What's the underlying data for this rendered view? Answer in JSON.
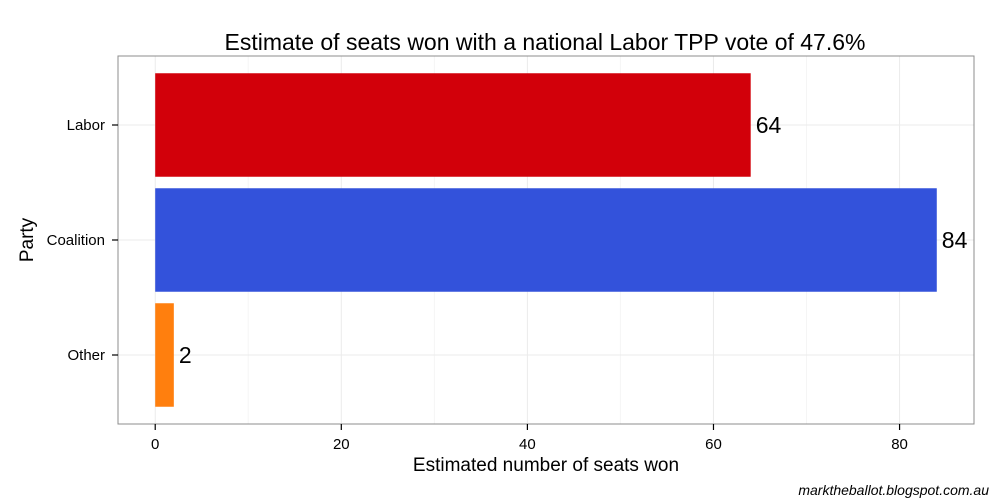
{
  "chart_data": {
    "type": "bar",
    "orientation": "horizontal",
    "title": "Estimate of seats won with a national Labor TPP vote of 47.6%",
    "xlabel": "Estimated number of seats won",
    "ylabel": "Party",
    "categories": [
      "Labor",
      "Coalition",
      "Other"
    ],
    "values": [
      64,
      84,
      2
    ],
    "data_labels": [
      "64",
      "84",
      "2"
    ],
    "colors": [
      "#d2000a",
      "#3352db",
      "#ff7f0e"
    ],
    "xlim": [
      -4,
      88
    ],
    "xticks": [
      0,
      20,
      40,
      60,
      80
    ],
    "xtick_labels": [
      "0",
      "20",
      "40",
      "60",
      "80"
    ],
    "grid": true,
    "legend": "none"
  },
  "credit": "marktheballot.blogspot.com.au"
}
